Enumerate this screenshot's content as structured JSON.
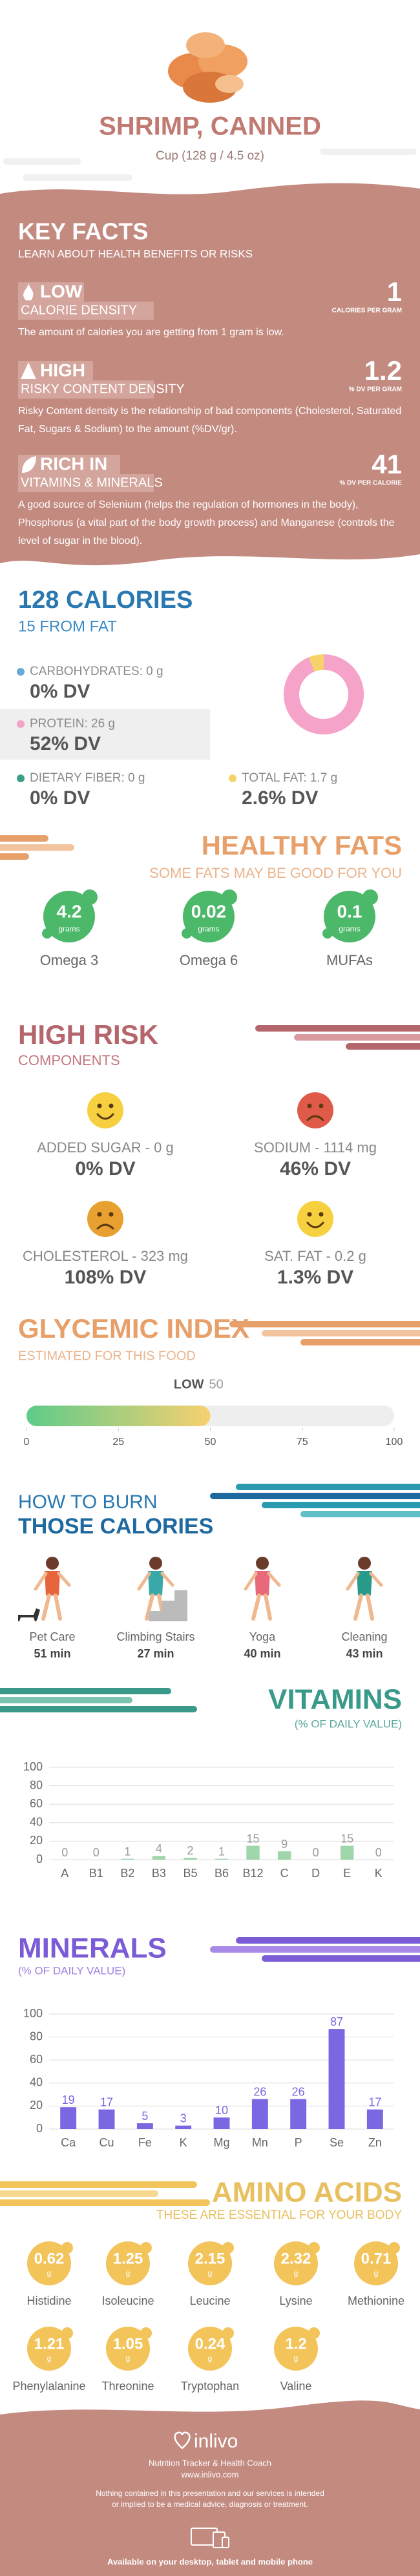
{
  "header": {
    "title": "SHRIMP, CANNED",
    "serving": "Cup (128 g / 4.5 oz)"
  },
  "key_facts": {
    "title": "KEY FACTS",
    "subtitle": "LEARN ABOUT HEALTH BENEFITS OR RISKS",
    "items": [
      {
        "level": "LOW",
        "label": "CALORIE DENSITY",
        "value": 1,
        "unit": "CALORIES PER GRAM",
        "text": "The amount of calories you are getting from 1 gram is low."
      },
      {
        "level": "HIGH",
        "label": "RISKY CONTENT DENSITY",
        "value": 1.2,
        "unit": "% DV PER GRAM",
        "text": "Risky Content density is the relationship of bad components (Cholesterol, Saturated Fat, Sugars & Sodium) to the amount (%DV/gr)."
      },
      {
        "level": "RICH IN",
        "label": "VITAMINS & MINERALS",
        "value": 41,
        "unit": "% DV PER CALORIE",
        "text": "A good source of Selenium (helps the regulation of hormones in the body), Phosphorus (a vital part of the body growth process) and Manganese (controls the level of sugar in the blood)."
      }
    ]
  },
  "calories": {
    "title": "128 CALORIES",
    "subtitle": "15 FROM FAT",
    "chart": {
      "type": "pie",
      "values": [
        0,
        26,
        0,
        1.7
      ],
      "value_labels": [
        "CARBOHYDRATES: 0 g",
        "PROTEIN: 26 g",
        "DIETARY FIBER: 0 g",
        "TOTAL FAT: 1.7 g"
      ],
      "dv_labels": [
        "0% DV",
        "52% DV",
        "0% DV",
        "2.6% DV"
      ],
      "colors": [
        "#6aa8d8",
        "#f6a3c9",
        "#3aa08a",
        "#f6d26a"
      ]
    }
  },
  "healthy_fats": {
    "title": "HEALTHY FATS",
    "subtitle": "SOME FATS MAY BE GOOD FOR YOU",
    "unit": "grams",
    "items": [
      {
        "name": "Omega 3",
        "value": 4.2
      },
      {
        "name": "Omega 6",
        "value": 0.02
      },
      {
        "name": "MUFAs",
        "value": 0.1
      }
    ]
  },
  "high_risk": {
    "title": "HIGH RISK",
    "subtitle": "COMPONENTS",
    "items": [
      {
        "label": "ADDED SUGAR - 0 g",
        "dv": "0% DV",
        "mood": "happy"
      },
      {
        "label": "SODIUM - 1114 mg",
        "dv": "46% DV",
        "mood": "sad"
      },
      {
        "label": "CHOLESTEROL - 323 mg",
        "dv": "108% DV",
        "mood": "worried"
      },
      {
        "label": "SAT. FAT - 0.2 g",
        "dv": "1.3% DV",
        "mood": "happy"
      }
    ]
  },
  "glycemic_index": {
    "type": "bar",
    "title": "GLYCEMIC INDEX",
    "subtitle": "ESTIMATED FOR THIS FOOD",
    "level": "LOW",
    "value": 50,
    "xlim": [
      0,
      100
    ],
    "xticks": [
      0,
      25,
      50,
      75,
      100
    ]
  },
  "burn": {
    "title_line1": "HOW TO BURN",
    "title_line2": "THOSE CALORIES",
    "activities": [
      {
        "name": "Pet Care",
        "time": "51 min"
      },
      {
        "name": "Climbing Stairs",
        "time": "27 min"
      },
      {
        "name": "Yoga",
        "time": "40 min"
      },
      {
        "name": "Cleaning",
        "time": "43 min"
      }
    ]
  },
  "vitamins": {
    "type": "bar",
    "title": "VITAMINS",
    "subtitle": "(% OF DAILY VALUE)",
    "categories": [
      "A",
      "B1",
      "B2",
      "B3",
      "B5",
      "B6",
      "B12",
      "C",
      "D",
      "E",
      "K"
    ],
    "values": [
      0,
      0,
      1,
      4,
      2,
      1,
      15,
      9,
      0,
      15,
      0
    ],
    "color": "#9fd6aa",
    "label_color": "#9a9a9a",
    "ylim": [
      0,
      100
    ],
    "yticks": [
      0,
      20,
      40,
      60,
      80,
      100
    ],
    "grid": true
  },
  "minerals": {
    "type": "bar",
    "title": "MINERALS",
    "subtitle": "(% OF DAILY VALUE)",
    "categories": [
      "Ca",
      "Cu",
      "Fe",
      "K",
      "Mg",
      "Mn",
      "P",
      "Se",
      "Zn"
    ],
    "values": [
      19,
      17,
      5,
      3,
      10,
      26,
      26,
      87,
      17
    ],
    "color": "#7a68e2",
    "label_color": "#7a68e2",
    "ylim": [
      0,
      100
    ],
    "yticks": [
      0,
      20,
      40,
      60,
      80,
      100
    ],
    "grid": true
  },
  "amino_acids": {
    "title": "AMINO ACIDS",
    "subtitle": "THESE ARE ESSENTIAL FOR YOUR BODY",
    "unit": "g",
    "items": [
      {
        "name": "Histidine",
        "value": 0.62
      },
      {
        "name": "Isoleucine",
        "value": 1.25
      },
      {
        "name": "Leucine",
        "value": 2.15
      },
      {
        "name": "Lysine",
        "value": 2.32
      },
      {
        "name": "Methionine",
        "value": 0.71
      },
      {
        "name": "Phenylalanine",
        "value": 1.21
      },
      {
        "name": "Threonine",
        "value": 1.05
      },
      {
        "name": "Tryptophan",
        "value": 0.24
      },
      {
        "name": "Valine",
        "value": 1.2
      }
    ]
  },
  "footer": {
    "brand": "inlivo",
    "tagline": "Nutrition Tracker & Health Coach",
    "url": "www.inlivo.com",
    "disclaimer": "Nothing contained in this presentation and our services is intended or implied to be a medical advice, diagnosis or treatment.",
    "available": "Available on your desktop, tablet and mobile phone"
  }
}
